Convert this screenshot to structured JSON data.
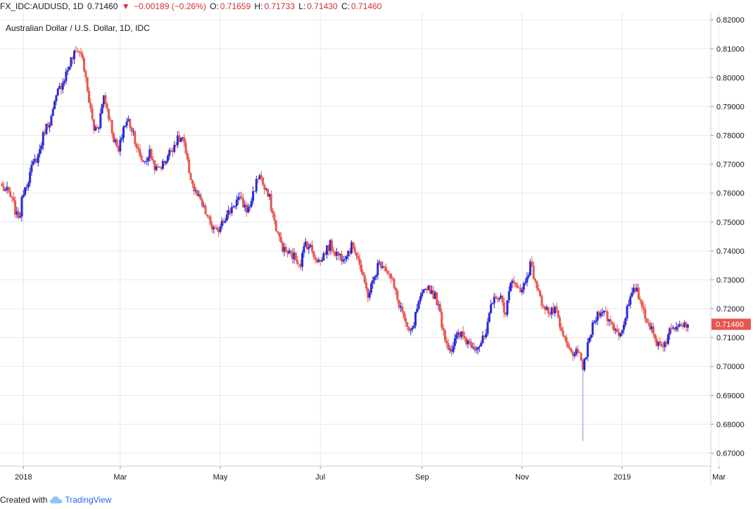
{
  "header": {
    "symbol": "FX_IDC:AUDUSD, 1D",
    "last": "0.71460",
    "change_arrow": "▼",
    "change": "−0.00189 (−0.26%)",
    "o_label": "O:",
    "o": "0.71659",
    "h_label": "H:",
    "h": "0.71733",
    "l_label": "L:",
    "l": "0.71430",
    "c_label": "C:",
    "c": "0.71460"
  },
  "footer": {
    "created_with": "Created with",
    "brand": "TradingView"
  },
  "colors": {
    "up": "#2a2ad8",
    "down": "#e8564f",
    "grid": "#e6e8ec",
    "text": "#131722",
    "wick_spike": "#7b8cde"
  },
  "chart_data": {
    "type": "candlestick",
    "title": "Australian Dollar / U.S. Dollar, 1D, IDC",
    "ylim": [
      0.6655,
      0.8215
    ],
    "y_ticks": [
      "0.82000",
      "0.81000",
      "0.80000",
      "0.79000",
      "0.78000",
      "0.77000",
      "0.76000",
      "0.75000",
      "0.74000",
      "0.73000",
      "0.72000",
      "0.71000",
      "0.70000",
      "0.69000",
      "0.68000",
      "0.67000"
    ],
    "x_ticks": [
      {
        "label": "2018",
        "day": 13
      },
      {
        "label": "Mar",
        "day": 72
      },
      {
        "label": "May",
        "day": 133
      },
      {
        "label": "Jul",
        "day": 194
      },
      {
        "label": "Sep",
        "day": 256
      },
      {
        "label": "Nov",
        "day": 317
      },
      {
        "label": "2019",
        "day": 378
      },
      {
        "label": "Mar",
        "day": 437
      }
    ],
    "last_price_label": "0.71460",
    "anchors": [
      [
        0,
        0.762
      ],
      [
        4,
        0.76
      ],
      [
        7,
        0.756
      ],
      [
        9,
        0.752
      ],
      [
        11,
        0.753
      ],
      [
        13,
        0.761
      ],
      [
        16,
        0.765
      ],
      [
        19,
        0.77
      ],
      [
        22,
        0.773
      ],
      [
        26,
        0.782
      ],
      [
        30,
        0.786
      ],
      [
        34,
        0.795
      ],
      [
        38,
        0.8
      ],
      [
        42,
        0.806
      ],
      [
        46,
        0.81
      ],
      [
        49,
        0.807
      ],
      [
        52,
        0.795
      ],
      [
        56,
        0.782
      ],
      [
        59,
        0.784
      ],
      [
        62,
        0.794
      ],
      [
        65,
        0.787
      ],
      [
        68,
        0.779
      ],
      [
        71,
        0.774
      ],
      [
        74,
        0.783
      ],
      [
        77,
        0.785
      ],
      [
        80,
        0.781
      ],
      [
        84,
        0.772
      ],
      [
        87,
        0.771
      ],
      [
        90,
        0.774
      ],
      [
        94,
        0.768
      ],
      [
        98,
        0.77
      ],
      [
        102,
        0.774
      ],
      [
        106,
        0.778
      ],
      [
        110,
        0.779
      ],
      [
        113,
        0.77
      ],
      [
        117,
        0.761
      ],
      [
        120,
        0.758
      ],
      [
        124,
        0.753
      ],
      [
        128,
        0.748
      ],
      [
        131,
        0.746
      ],
      [
        134,
        0.751
      ],
      [
        137,
        0.752
      ],
      [
        141,
        0.756
      ],
      [
        144,
        0.758
      ],
      [
        147,
        0.756
      ],
      [
        150,
        0.754
      ],
      [
        154,
        0.762
      ],
      [
        157,
        0.767
      ],
      [
        160,
        0.761
      ],
      [
        163,
        0.758
      ],
      [
        166,
        0.75
      ],
      [
        169,
        0.744
      ],
      [
        172,
        0.74
      ],
      [
        175,
        0.739
      ],
      [
        178,
        0.738
      ],
      [
        182,
        0.736
      ],
      [
        185,
        0.743
      ],
      [
        188,
        0.741
      ],
      [
        191,
        0.738
      ],
      [
        194,
        0.736
      ],
      [
        197,
        0.74
      ],
      [
        200,
        0.742
      ],
      [
        204,
        0.739
      ],
      [
        207,
        0.738
      ],
      [
        211,
        0.74
      ],
      [
        214,
        0.742
      ],
      [
        217,
        0.738
      ],
      [
        220,
        0.73
      ],
      [
        223,
        0.725
      ],
      [
        226,
        0.729
      ],
      [
        229,
        0.735
      ],
      [
        232,
        0.736
      ],
      [
        235,
        0.733
      ],
      [
        238,
        0.729
      ],
      [
        241,
        0.723
      ],
      [
        244,
        0.719
      ],
      [
        247,
        0.712
      ],
      [
        250,
        0.712
      ],
      [
        253,
        0.72
      ],
      [
        256,
        0.724
      ],
      [
        259,
        0.728
      ],
      [
        262,
        0.726
      ],
      [
        265,
        0.723
      ],
      [
        268,
        0.715
      ],
      [
        271,
        0.708
      ],
      [
        274,
        0.706
      ],
      [
        277,
        0.71
      ],
      [
        280,
        0.711
      ],
      [
        283,
        0.709
      ],
      [
        286,
        0.708
      ],
      [
        289,
        0.707
      ],
      [
        292,
        0.708
      ],
      [
        295,
        0.711
      ],
      [
        298,
        0.72
      ],
      [
        301,
        0.725
      ],
      [
        304,
        0.723
      ],
      [
        307,
        0.719
      ],
      [
        310,
        0.728
      ],
      [
        313,
        0.73
      ],
      [
        316,
        0.725
      ],
      [
        319,
        0.73
      ],
      [
        322,
        0.735
      ],
      [
        325,
        0.73
      ],
      [
        328,
        0.723
      ],
      [
        331,
        0.721
      ],
      [
        334,
        0.718
      ],
      [
        337,
        0.72
      ],
      [
        340,
        0.713
      ],
      [
        343,
        0.709
      ],
      [
        346,
        0.705
      ],
      [
        349,
        0.705
      ],
      [
        352,
        0.703
      ],
      [
        354,
        0.7
      ],
      [
        356,
        0.704
      ],
      [
        359,
        0.712
      ],
      [
        362,
        0.717
      ],
      [
        365,
        0.72
      ],
      [
        368,
        0.718
      ],
      [
        371,
        0.715
      ],
      [
        374,
        0.713
      ],
      [
        377,
        0.711
      ],
      [
        380,
        0.718
      ],
      [
        383,
        0.723
      ],
      [
        386,
        0.727
      ],
      [
        389,
        0.723
      ],
      [
        392,
        0.718
      ],
      [
        395,
        0.714
      ],
      [
        398,
        0.709
      ],
      [
        401,
        0.708
      ],
      [
        404,
        0.708
      ],
      [
        407,
        0.712
      ],
      [
        410,
        0.714
      ],
      [
        413,
        0.716
      ],
      [
        416,
        0.715
      ],
      [
        418,
        0.7146
      ]
    ],
    "anomaly": {
      "day": 354,
      "low": 0.6742
    }
  }
}
